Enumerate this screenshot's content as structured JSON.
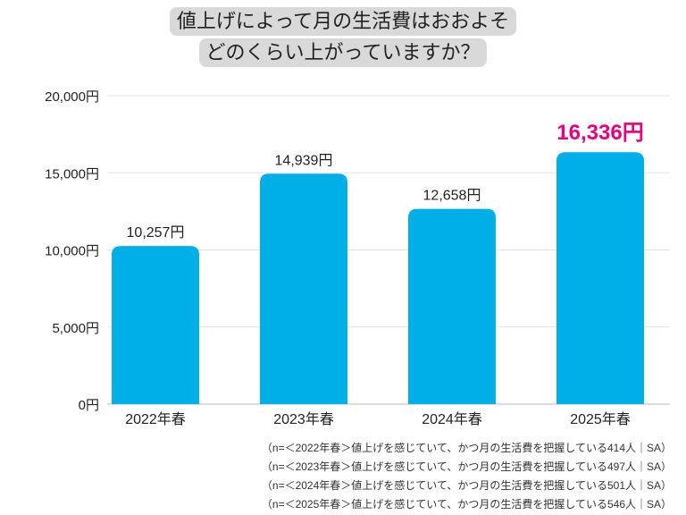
{
  "title_lines": [
    "値上げによって月の生活費はおおよそ",
    "どのくらい上がっていますか？"
  ],
  "chart_data": {
    "type": "bar",
    "categories": [
      "2022年春",
      "2023年春",
      "2024年春",
      "2025年春"
    ],
    "values": [
      10257,
      14939,
      12658,
      16336
    ],
    "data_labels": [
      "10,257円",
      "14,939円",
      "12,658円",
      "16,336円"
    ],
    "ylim": [
      0,
      20000
    ],
    "yticks": [
      0,
      5000,
      10000,
      15000,
      20000
    ],
    "ytick_labels": [
      "0円",
      "5,000円",
      "10,000円",
      "15,000円",
      "20,000円"
    ],
    "grid": true,
    "bar_color": "#00aee8",
    "highlight_label_color": "#e4007f",
    "highlight_index": 3
  },
  "notes": [
    "（n=＜2022年春＞値上げを感じていて、かつ月の生活費を把握している414人｜SA）",
    "（n=＜2023年春＞値上げを感じていて、かつ月の生活費を把握している497人｜SA）",
    "（n=＜2024年春＞値上げを感じていて、かつ月の生活費を把握している501人｜SA）",
    "（n=＜2025年春＞値上げを感じていて、かつ月の生活費を把握している546人｜SA）"
  ]
}
